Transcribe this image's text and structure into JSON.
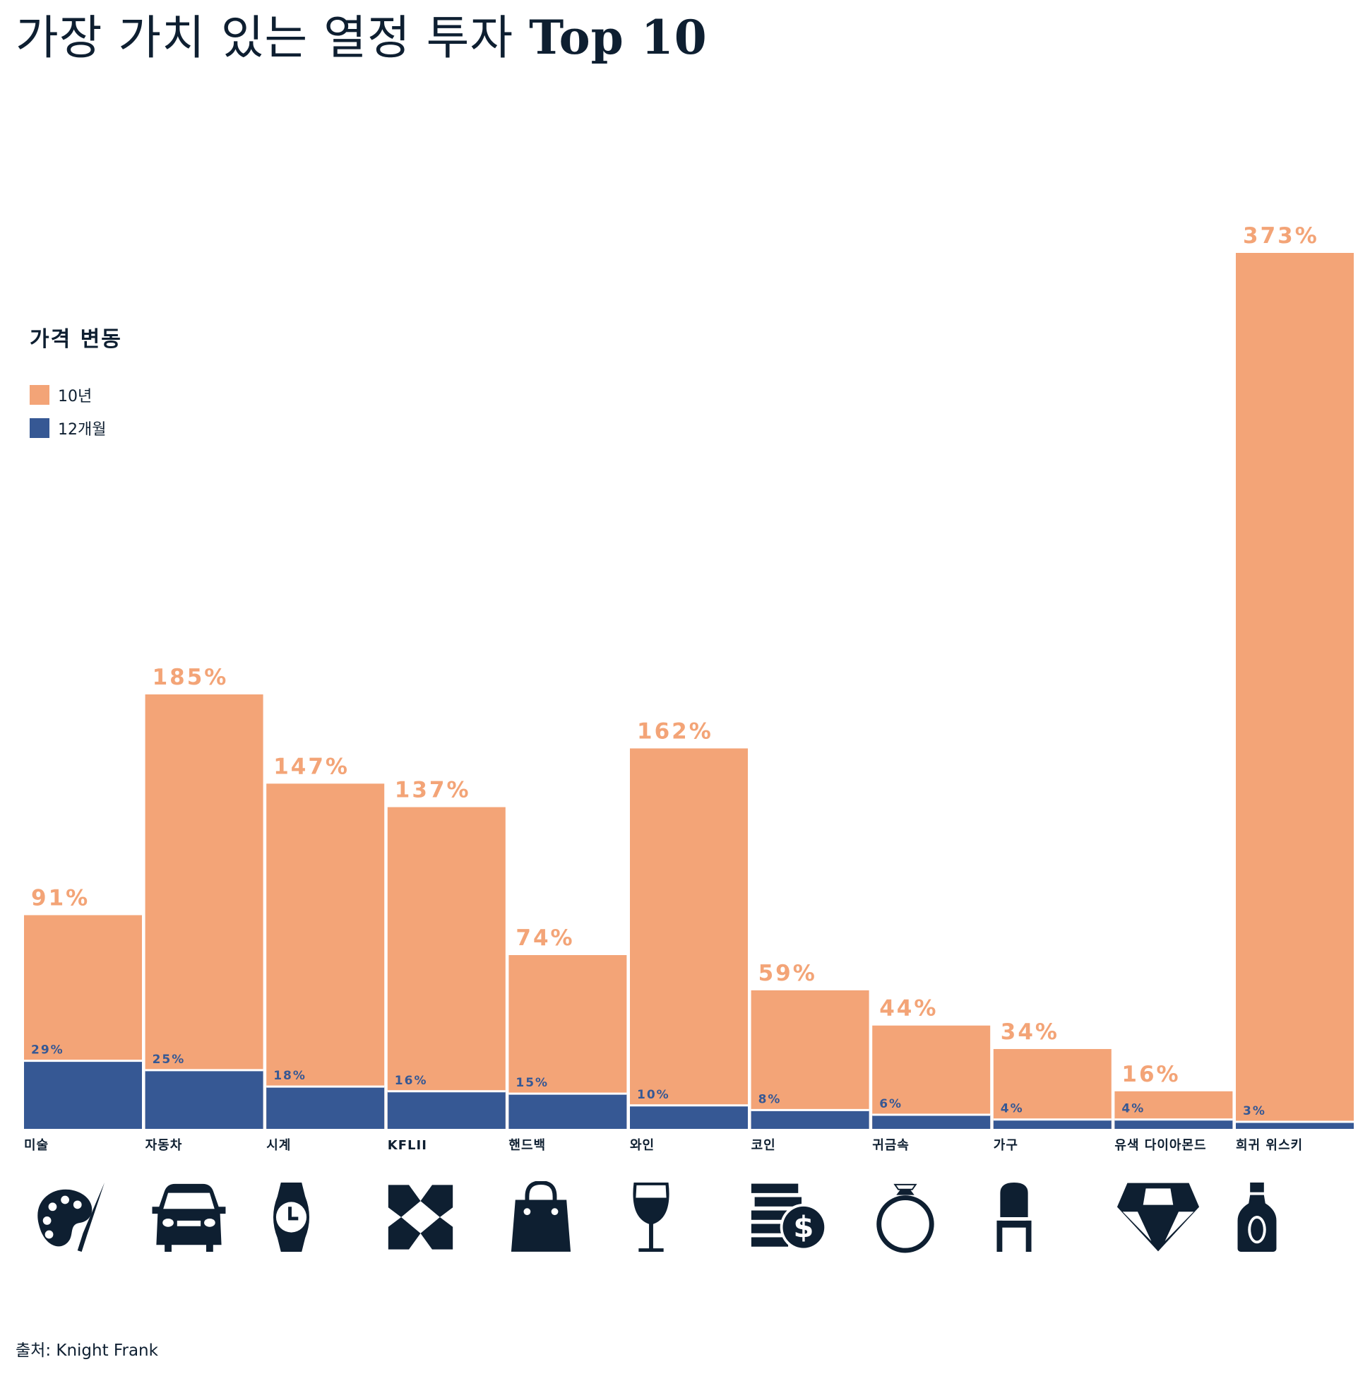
{
  "title_ko": "가장 가치 있는 열정 투자",
  "title_en": "Top 10",
  "source": "출처: Knight Frank",
  "chart_data": {
    "type": "bar",
    "title": "가장 가치 있는 열정 투자 Top 10",
    "legend_title": "가격 변동",
    "legend_placement": "left",
    "colors": {
      "10년": "#F3A477",
      "12개월": "#365894"
    },
    "categories": [
      "미술",
      "자동차",
      "시계",
      "KFLII",
      "핸드백",
      "와인",
      "코인",
      "귀금속",
      "가구",
      "유색 다이아몬드",
      "희귀 위스키"
    ],
    "icons": [
      "palette-icon",
      "car-icon",
      "watch-icon",
      "kflii-icon",
      "handbag-icon",
      "wine-glass-icon",
      "coins-icon",
      "ring-icon",
      "chair-icon",
      "diamond-icon",
      "whisky-bottle-icon"
    ],
    "series": [
      {
        "name": "10년",
        "values": [
          91,
          185,
          147,
          137,
          74,
          162,
          59,
          44,
          34,
          16,
          373
        ],
        "labels": [
          "91%",
          "185%",
          "147%",
          "137%",
          "74%",
          "162%",
          "59%",
          "44%",
          "34%",
          "16%",
          "373%"
        ]
      },
      {
        "name": "12개월",
        "values": [
          29,
          25,
          18,
          16,
          15,
          10,
          8,
          6,
          4,
          4,
          3
        ],
        "labels": [
          "29%",
          "25%",
          "18%",
          "16%",
          "15%",
          "10%",
          "8%",
          "6%",
          "4%",
          "4%",
          "3%"
        ]
      }
    ],
    "ylim": [
      0,
      373
    ],
    "grid": false
  }
}
